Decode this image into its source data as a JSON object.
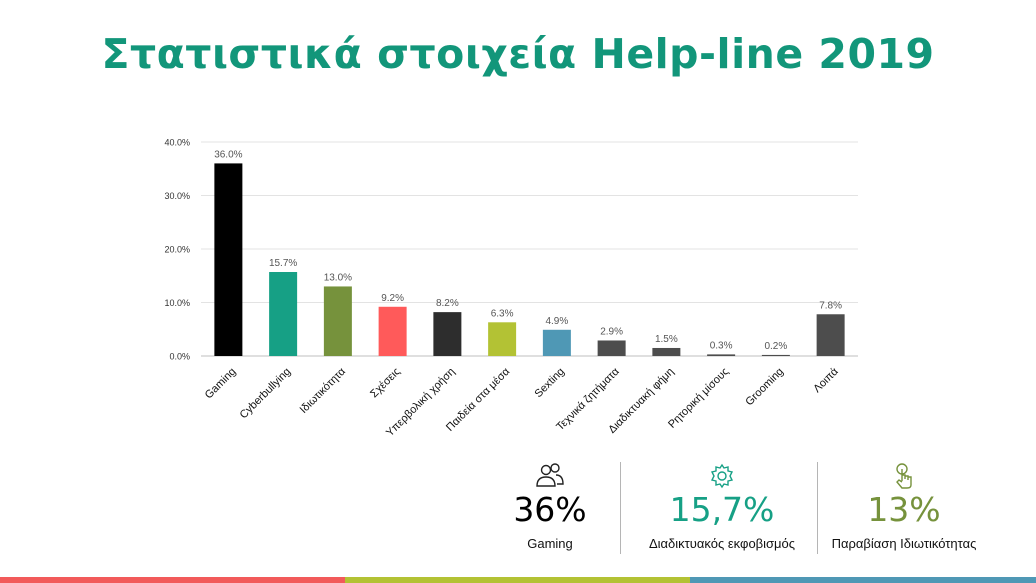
{
  "title": "Στατιστικά στοιχεία Help-line 2019",
  "chart_data": {
    "type": "bar",
    "categories": [
      "Gaming",
      "Cyberbullying",
      "Ιδιωτικότητα",
      "Σχέσεις",
      "Υπερβολική χρήση",
      "Παιδεία στα μέσα",
      "Sexting",
      "Τεχνικά ζητήματα",
      "Διαδικτυακή φήμη",
      "Ρητορική μίσους",
      "Grooming",
      "Λοιπά"
    ],
    "values": [
      36.0,
      15.7,
      13.0,
      9.2,
      8.2,
      6.3,
      4.9,
      2.9,
      1.5,
      0.3,
      0.2,
      7.8
    ],
    "value_labels": [
      "36.0%",
      "15.7%",
      "13.0%",
      "9.2%",
      "8.2%",
      "6.3%",
      "4.9%",
      "2.9%",
      "1.5%",
      "0.3%",
      "0.2%",
      "7.8%"
    ],
    "colors": [
      "#000000",
      "#16a085",
      "#76923c",
      "#ff5a5a",
      "#2d2d2d",
      "#b3c234",
      "#4f98b5",
      "#4d4d4d",
      "#4d4d4d",
      "#4d4d4d",
      "#4d4d4d",
      "#4d4d4d"
    ],
    "yticks": [
      "0.0%",
      "10.0%",
      "20.0%",
      "30.0%",
      "40.0%"
    ],
    "ylim": [
      0,
      40
    ],
    "grid": true
  },
  "stats": [
    {
      "value": "36%",
      "label": "Gaming",
      "icon": "users-icon",
      "color": "#000000"
    },
    {
      "value": "15,7%",
      "label": "Διαδικτυακός εκφοβισμός",
      "icon": "gear-icon",
      "color": "#16a085"
    },
    {
      "value": "13%",
      "label": "Παραβίαση Ιδιωτικότητας",
      "icon": "touch-icon",
      "color": "#76923c"
    }
  ],
  "bottom_bar_colors": [
    "#f25a5a",
    "#b3c234",
    "#4f98b5"
  ]
}
